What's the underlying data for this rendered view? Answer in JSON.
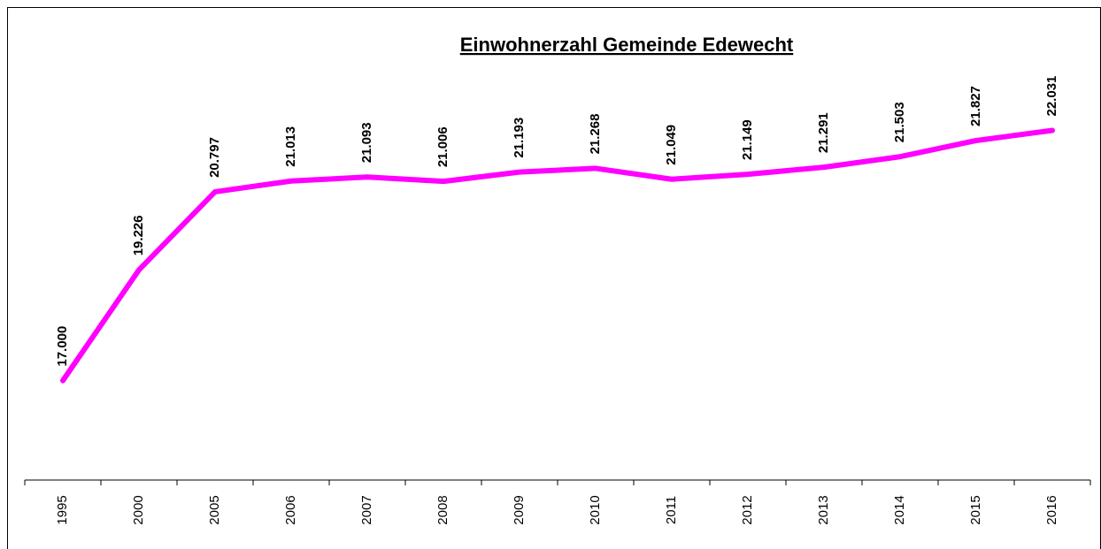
{
  "chart_data": {
    "type": "line",
    "title": "Einwohnerzahl Gemeinde Edewecht",
    "categories": [
      "1995",
      "2000",
      "2005",
      "2006",
      "2007",
      "2008",
      "2009",
      "2010",
      "2011",
      "2012",
      "2013",
      "2014",
      "2015",
      "2016"
    ],
    "series": [
      {
        "color": "#ff00ff",
        "values": [
          17000,
          19226,
          20797,
          21013,
          21093,
          21006,
          21193,
          21268,
          21049,
          21149,
          21291,
          21503,
          21827,
          22031
        ],
        "value_labels": [
          "17.000",
          "19.226",
          "20.797",
          "21.013",
          "21.093",
          "21.006",
          "21.193",
          "21.268",
          "21.049",
          "21.149",
          "21.291",
          "21.503",
          "21.827",
          "22.031"
        ]
      }
    ],
    "ylim": [
      15000,
      23000
    ]
  }
}
